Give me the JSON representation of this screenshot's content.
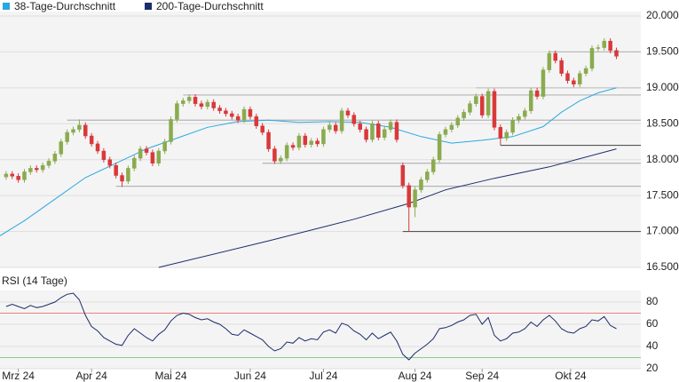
{
  "chart_data": [
    {
      "type": "candlestick",
      "x": [
        0,
        1,
        2,
        3,
        4,
        5,
        6,
        7,
        8,
        9,
        10,
        11,
        12,
        13,
        14,
        15,
        16,
        17,
        18,
        19,
        20,
        21,
        22,
        23,
        24,
        25,
        26,
        27,
        28,
        29,
        30,
        31,
        32,
        33,
        34,
        35,
        36,
        37,
        38,
        39,
        40,
        41,
        42,
        43,
        44,
        45,
        46,
        47,
        48,
        49,
        50,
        51,
        52,
        53,
        54,
        55,
        56,
        57,
        58,
        59,
        60,
        61,
        62,
        63,
        64,
        65,
        66,
        67,
        68,
        69,
        70,
        71,
        72,
        73,
        74,
        75,
        76,
        77,
        78,
        79,
        80,
        81,
        82,
        83,
        84,
        85,
        86,
        87,
        88,
        89,
        90,
        91,
        92,
        93,
        94,
        95,
        96,
        97,
        98,
        99,
        100
      ],
      "open": [
        17760,
        17800,
        17770,
        17720,
        17830,
        17880,
        17860,
        17920,
        17980,
        18080,
        18250,
        18380,
        18420,
        18480,
        18330,
        18220,
        18120,
        18000,
        17920,
        17780,
        17700,
        17880,
        18020,
        18150,
        18100,
        17950,
        18120,
        18250,
        18560,
        18780,
        18820,
        18870,
        18780,
        18740,
        18800,
        18720,
        18680,
        18640,
        18600,
        18550,
        18700,
        18600,
        18470,
        18380,
        18150,
        17980,
        18020,
        18200,
        18170,
        18330,
        18210,
        18260,
        18220,
        18420,
        18480,
        18400,
        18680,
        18620,
        18500,
        18420,
        18280,
        18500,
        18310,
        18420,
        18520,
        17920,
        17640,
        17340,
        17580,
        17720,
        17830,
        18000,
        18350,
        18420,
        18480,
        18580,
        18660,
        18780,
        18880,
        18620,
        18950,
        18450,
        18300,
        18380,
        18550,
        18600,
        18680,
        18960,
        18880,
        19250,
        19480,
        19380,
        19200,
        19100,
        19050,
        19200,
        19270,
        19550,
        19560,
        19650,
        19520
      ],
      "high": [
        17840,
        17840,
        17810,
        17870,
        17920,
        17920,
        17960,
        18020,
        18120,
        18290,
        18420,
        18460,
        18560,
        18520,
        18370,
        18260,
        18160,
        18040,
        17960,
        17820,
        17920,
        18060,
        18190,
        18190,
        18140,
        18160,
        18290,
        18600,
        18820,
        18860,
        18910,
        18910,
        18820,
        18840,
        18840,
        18760,
        18720,
        18680,
        18640,
        18740,
        18740,
        18640,
        18510,
        18420,
        18190,
        18060,
        18240,
        18240,
        18370,
        18370,
        18300,
        18300,
        18460,
        18520,
        18520,
        18720,
        18720,
        18660,
        18540,
        18460,
        18540,
        18540,
        18460,
        18560,
        18560,
        17960,
        17680,
        17620,
        17760,
        17870,
        18040,
        18390,
        18460,
        18520,
        18620,
        18700,
        18820,
        18920,
        18920,
        18990,
        18990,
        18490,
        18420,
        18590,
        18640,
        18720,
        19000,
        19000,
        19290,
        19520,
        19520,
        19420,
        19240,
        19140,
        19240,
        19310,
        19590,
        19600,
        19690,
        19690,
        19560
      ],
      "low": [
        17720,
        17730,
        17680,
        17680,
        17790,
        17820,
        17820,
        17880,
        17940,
        18040,
        18210,
        18340,
        18380,
        18290,
        18180,
        18080,
        17960,
        17880,
        17740,
        17620,
        17660,
        17840,
        17980,
        18060,
        17910,
        17910,
        18080,
        18210,
        18520,
        18740,
        18780,
        18740,
        18700,
        18700,
        18680,
        18640,
        18600,
        18560,
        18510,
        18510,
        18560,
        18430,
        18340,
        18110,
        17940,
        17940,
        17980,
        18130,
        18130,
        18170,
        18170,
        18180,
        18180,
        18380,
        18360,
        18360,
        18580,
        18460,
        18380,
        18240,
        18240,
        18270,
        18270,
        18380,
        18240,
        17600,
        17000,
        17200,
        17540,
        17680,
        17790,
        17960,
        18310,
        18380,
        18440,
        18540,
        18620,
        18740,
        18580,
        18580,
        18410,
        18200,
        18260,
        18340,
        18510,
        18560,
        18640,
        18840,
        18840,
        19210,
        19340,
        19160,
        19060,
        19010,
        19010,
        19160,
        19230,
        19510,
        19520,
        19480,
        19400
      ],
      "close": [
        17800,
        17770,
        17720,
        17830,
        17880,
        17860,
        17920,
        17980,
        18080,
        18250,
        18380,
        18420,
        18480,
        18330,
        18220,
        18120,
        18000,
        17920,
        17780,
        17700,
        17880,
        18020,
        18150,
        18100,
        17950,
        18120,
        18250,
        18560,
        18780,
        18820,
        18870,
        18780,
        18740,
        18800,
        18720,
        18680,
        18640,
        18600,
        18550,
        18700,
        18600,
        18470,
        18380,
        18150,
        17980,
        18020,
        18200,
        18170,
        18330,
        18210,
        18260,
        18220,
        18420,
        18480,
        18400,
        18680,
        18620,
        18500,
        18420,
        18280,
        18500,
        18310,
        18420,
        18520,
        18280,
        17640,
        17340,
        17580,
        17720,
        17830,
        18000,
        18350,
        18420,
        18480,
        18580,
        18660,
        18780,
        18880,
        18620,
        18950,
        18450,
        18300,
        18380,
        18550,
        18600,
        18680,
        18960,
        18880,
        19250,
        19480,
        19380,
        19200,
        19100,
        19050,
        19200,
        19270,
        19550,
        19560,
        19650,
        19520,
        19440
      ],
      "up_color": "#8aab4e",
      "down_color": "#d9383a",
      "series": [
        {
          "name": "38-Tage-Durchschnitt",
          "color": "#29a8e0",
          "x": [
            -1,
            3,
            8,
            13,
            18,
            23,
            28,
            33,
            38,
            43,
            48,
            53,
            58,
            63,
            68,
            73,
            78,
            83,
            88,
            91,
            94,
            97,
            100
          ],
          "values": [
            16940,
            17150,
            17450,
            17750,
            17950,
            18150,
            18300,
            18450,
            18530,
            18550,
            18520,
            18530,
            18520,
            18450,
            18320,
            18230,
            18270,
            18320,
            18460,
            18660,
            18820,
            18930,
            19000
          ]
        },
        {
          "name": "200-Tage-Durchschnitt",
          "color": "#1b2d6b",
          "x": [
            25,
            43,
            57,
            66,
            72,
            80,
            89,
            100
          ],
          "values": [
            16500,
            16870,
            17170,
            17390,
            17580,
            17740,
            17900,
            18150
          ]
        }
      ],
      "levels": [
        {
          "value": 19500,
          "from": 89,
          "color": "#b5b5b5"
        },
        {
          "value": 19000,
          "from": 77,
          "color": "#c4c4c4"
        },
        {
          "value": 18900,
          "from": 29,
          "color": "#b5b5b5"
        },
        {
          "value": 18550,
          "from": 10,
          "color": "#b5b5b5"
        },
        {
          "value": 18200,
          "from": 81,
          "color": "#555555"
        },
        {
          "value": 17950,
          "from": 42,
          "color": "#b5b5b5"
        },
        {
          "value": 17630,
          "from": 18,
          "color": "#b5b5b5"
        },
        {
          "value": 17000,
          "from": 65,
          "color": "#555555"
        }
      ],
      "xlim": [
        -1,
        104
      ],
      "ylim": [
        16500,
        20000
      ],
      "yticks": [
        {
          "value": 16500,
          "label": "16.500"
        },
        {
          "value": 17000,
          "label": "17.000"
        },
        {
          "value": 17500,
          "label": "17.500"
        },
        {
          "value": 18000,
          "label": "18.000"
        },
        {
          "value": 18500,
          "label": "18.500"
        },
        {
          "value": 19000,
          "label": "19.000"
        },
        {
          "value": 19500,
          "label": "19.500"
        },
        {
          "value": 20000,
          "label": "20.000"
        }
      ],
      "grid": true
    },
    {
      "type": "line",
      "title": "RSI (14 Tage)",
      "color": "#1b2d6b",
      "x": [
        0,
        1,
        2,
        3,
        4,
        5,
        6,
        7,
        8,
        9,
        10,
        11,
        12,
        13,
        14,
        15,
        16,
        17,
        18,
        19,
        20,
        21,
        22,
        23,
        24,
        25,
        26,
        27,
        28,
        29,
        30,
        31,
        32,
        33,
        34,
        35,
        36,
        37,
        38,
        39,
        40,
        41,
        42,
        43,
        44,
        45,
        46,
        47,
        48,
        49,
        50,
        51,
        52,
        53,
        54,
        55,
        56,
        57,
        58,
        59,
        60,
        61,
        62,
        63,
        64,
        65,
        66,
        67,
        68,
        69,
        70,
        71,
        72,
        73,
        74,
        75,
        76,
        77,
        78,
        79,
        80,
        81,
        82,
        83,
        84,
        85,
        86,
        87,
        88,
        89,
        90,
        91,
        92,
        93,
        94,
        95,
        96,
        97,
        98,
        99,
        100
      ],
      "values": [
        76,
        78,
        76,
        74,
        77,
        75,
        76,
        78,
        80,
        84,
        87,
        88,
        82,
        68,
        58,
        54,
        48,
        45,
        42,
        41,
        50,
        56,
        52,
        48,
        45,
        51,
        55,
        63,
        68,
        70,
        69,
        66,
        64,
        65,
        62,
        60,
        56,
        51,
        50,
        55,
        52,
        49,
        46,
        40,
        36,
        38,
        44,
        43,
        48,
        45,
        47,
        46,
        53,
        55,
        52,
        61,
        59,
        54,
        51,
        46,
        52,
        47,
        50,
        53,
        45,
        33,
        28,
        34,
        38,
        42,
        47,
        56,
        57,
        59,
        62,
        64,
        68,
        69,
        60,
        66,
        50,
        45,
        47,
        52,
        53,
        56,
        62,
        58,
        64,
        68,
        63,
        56,
        53,
        52,
        56,
        58,
        64,
        63,
        67,
        59,
        56
      ],
      "bands": [
        {
          "value": 70,
          "color": "#f08080"
        },
        {
          "value": 30,
          "color": "#8fc98f"
        }
      ],
      "xlim": [
        -1,
        104
      ],
      "ylim": [
        20,
        90
      ],
      "yticks": [
        20,
        40,
        60,
        80
      ],
      "xticks": [
        {
          "value": 2,
          "label": "Mrz 24"
        },
        {
          "value": 14,
          "label": "Apr 24"
        },
        {
          "value": 27,
          "label": "Mai 24"
        },
        {
          "value": 40,
          "label": "Jun 24"
        },
        {
          "value": 52,
          "label": "Jul 24"
        },
        {
          "value": 67,
          "label": "Aug 24"
        },
        {
          "value": 78,
          "label": "Sep 24"
        },
        {
          "value": 92.5,
          "label": "Okt 24"
        }
      ],
      "grid": true
    }
  ]
}
